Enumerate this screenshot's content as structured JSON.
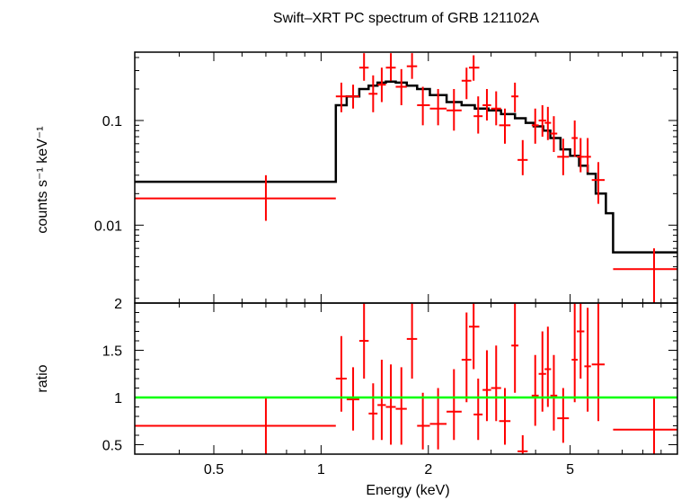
{
  "chart_data": {
    "title": "Swift–XRT PC spectrum of GRB 121102A",
    "xlabel": "Energy (keV)",
    "x_scale": "log",
    "xlim": [
      0.3,
      10
    ],
    "x_ticks": [
      {
        "value": 0.5,
        "label": "0.5"
      },
      {
        "value": 1,
        "label": "1"
      },
      {
        "value": 2,
        "label": "2"
      },
      {
        "value": 5,
        "label": "5"
      }
    ],
    "colors": {
      "data": "#ff0000",
      "model": "#000000",
      "ratio_line": "#00ff00",
      "axes": "#000000"
    },
    "panels": [
      {
        "type": "scatter",
        "ylabel": "counts s⁻¹ keV⁻¹",
        "y_scale": "log",
        "ylim": [
          0.0018,
          0.45
        ],
        "y_ticks": [
          {
            "value": 0.1,
            "label": "0.1"
          },
          {
            "value": 0.01,
            "label": "0.01"
          }
        ],
        "model_steps": [
          {
            "x0": 0.3,
            "x1": 1.1,
            "y": 0.026
          },
          {
            "x0": 1.1,
            "x1": 1.18,
            "y": 0.14
          },
          {
            "x0": 1.18,
            "x1": 1.28,
            "y": 0.17
          },
          {
            "x0": 1.28,
            "x1": 1.36,
            "y": 0.2
          },
          {
            "x0": 1.36,
            "x1": 1.44,
            "y": 0.215
          },
          {
            "x0": 1.44,
            "x1": 1.52,
            "y": 0.23
          },
          {
            "x0": 1.52,
            "x1": 1.62,
            "y": 0.235
          },
          {
            "x0": 1.62,
            "x1": 1.74,
            "y": 0.23
          },
          {
            "x0": 1.74,
            "x1": 1.86,
            "y": 0.215
          },
          {
            "x0": 1.86,
            "x1": 2.02,
            "y": 0.2
          },
          {
            "x0": 2.02,
            "x1": 2.25,
            "y": 0.175
          },
          {
            "x0": 2.25,
            "x1": 2.48,
            "y": 0.15
          },
          {
            "x0": 2.48,
            "x1": 2.7,
            "y": 0.14
          },
          {
            "x0": 2.7,
            "x1": 2.95,
            "y": 0.13
          },
          {
            "x0": 2.95,
            "x1": 3.2,
            "y": 0.125
          },
          {
            "x0": 3.2,
            "x1": 3.5,
            "y": 0.115
          },
          {
            "x0": 3.5,
            "x1": 3.75,
            "y": 0.105
          },
          {
            "x0": 3.75,
            "x1": 3.95,
            "y": 0.095
          },
          {
            "x0": 3.95,
            "x1": 4.2,
            "y": 0.088
          },
          {
            "x0": 4.2,
            "x1": 4.4,
            "y": 0.08
          },
          {
            "x0": 4.4,
            "x1": 4.7,
            "y": 0.068
          },
          {
            "x0": 4.7,
            "x1": 5.0,
            "y": 0.053
          },
          {
            "x0": 5.0,
            "x1": 5.3,
            "y": 0.046
          },
          {
            "x0": 5.3,
            "x1": 5.6,
            "y": 0.037
          },
          {
            "x0": 5.6,
            "x1": 5.9,
            "y": 0.031
          },
          {
            "x0": 5.9,
            "x1": 6.3,
            "y": 0.02
          },
          {
            "x0": 6.3,
            "x1": 6.6,
            "y": 0.013
          },
          {
            "x0": 6.6,
            "x1": 10,
            "y": 0.0055
          }
        ],
        "points": [
          {
            "x": 0.7,
            "xlo": 0.3,
            "xhi": 1.1,
            "y": 0.018,
            "ylo": 0.011,
            "yhi": 0.03
          },
          {
            "x": 1.14,
            "xlo": 1.1,
            "xhi": 1.18,
            "y": 0.17,
            "ylo": 0.12,
            "yhi": 0.23
          },
          {
            "x": 1.23,
            "xlo": 1.18,
            "xhi": 1.28,
            "y": 0.17,
            "ylo": 0.13,
            "yhi": 0.22
          },
          {
            "x": 1.32,
            "xlo": 1.28,
            "xhi": 1.36,
            "y": 0.32,
            "ylo": 0.24,
            "yhi": 0.44
          },
          {
            "x": 1.4,
            "xlo": 1.36,
            "xhi": 1.44,
            "y": 0.18,
            "ylo": 0.12,
            "yhi": 0.27
          },
          {
            "x": 1.48,
            "xlo": 1.44,
            "xhi": 1.52,
            "y": 0.22,
            "ylo": 0.15,
            "yhi": 0.32
          },
          {
            "x": 1.57,
            "xlo": 1.52,
            "xhi": 1.62,
            "y": 0.32,
            "ylo": 0.24,
            "yhi": 0.44
          },
          {
            "x": 1.68,
            "xlo": 1.62,
            "xhi": 1.74,
            "y": 0.21,
            "ylo": 0.14,
            "yhi": 0.31
          },
          {
            "x": 1.8,
            "xlo": 1.74,
            "xhi": 1.86,
            "y": 0.33,
            "ylo": 0.25,
            "yhi": 0.44
          },
          {
            "x": 1.93,
            "xlo": 1.86,
            "xhi": 2.02,
            "y": 0.14,
            "ylo": 0.09,
            "yhi": 0.21
          },
          {
            "x": 2.13,
            "xlo": 2.02,
            "xhi": 2.25,
            "y": 0.13,
            "ylo": 0.09,
            "yhi": 0.2
          },
          {
            "x": 2.36,
            "xlo": 2.25,
            "xhi": 2.48,
            "y": 0.125,
            "ylo": 0.08,
            "yhi": 0.2
          },
          {
            "x": 2.56,
            "xlo": 2.48,
            "xhi": 2.64,
            "y": 0.24,
            "ylo": 0.16,
            "yhi": 0.32
          },
          {
            "x": 2.68,
            "xlo": 2.6,
            "xhi": 2.78,
            "y": 0.32,
            "ylo": 0.24,
            "yhi": 0.42
          },
          {
            "x": 2.76,
            "xlo": 2.68,
            "xhi": 2.84,
            "y": 0.11,
            "ylo": 0.075,
            "yhi": 0.17
          },
          {
            "x": 2.92,
            "xlo": 2.84,
            "xhi": 3.0,
            "y": 0.14,
            "ylo": 0.1,
            "yhi": 0.2
          },
          {
            "x": 3.1,
            "xlo": 3.0,
            "xhi": 3.2,
            "y": 0.13,
            "ylo": 0.09,
            "yhi": 0.19
          },
          {
            "x": 3.28,
            "xlo": 3.16,
            "xhi": 3.4,
            "y": 0.09,
            "ylo": 0.06,
            "yhi": 0.13
          },
          {
            "x": 3.5,
            "xlo": 3.42,
            "xhi": 3.58,
            "y": 0.17,
            "ylo": 0.12,
            "yhi": 0.23
          },
          {
            "x": 3.68,
            "xlo": 3.56,
            "xhi": 3.8,
            "y": 0.042,
            "ylo": 0.03,
            "yhi": 0.065
          },
          {
            "x": 3.99,
            "xlo": 3.9,
            "xhi": 4.08,
            "y": 0.09,
            "ylo": 0.06,
            "yhi": 0.13
          },
          {
            "x": 4.18,
            "xlo": 4.08,
            "xhi": 4.28,
            "y": 0.1,
            "ylo": 0.07,
            "yhi": 0.14
          },
          {
            "x": 4.33,
            "xlo": 4.24,
            "xhi": 4.42,
            "y": 0.095,
            "ylo": 0.065,
            "yhi": 0.135
          },
          {
            "x": 4.5,
            "xlo": 4.4,
            "xhi": 4.6,
            "y": 0.075,
            "ylo": 0.05,
            "yhi": 0.11
          },
          {
            "x": 4.78,
            "xlo": 4.6,
            "xhi": 4.96,
            "y": 0.045,
            "ylo": 0.03,
            "yhi": 0.067
          },
          {
            "x": 5.15,
            "xlo": 5.05,
            "xhi": 5.25,
            "y": 0.068,
            "ylo": 0.045,
            "yhi": 0.1
          },
          {
            "x": 5.35,
            "xlo": 5.22,
            "xhi": 5.48,
            "y": 0.045,
            "ylo": 0.032,
            "yhi": 0.068
          },
          {
            "x": 5.6,
            "xlo": 5.48,
            "xhi": 5.72,
            "y": 0.045,
            "ylo": 0.032,
            "yhi": 0.068
          },
          {
            "x": 6.0,
            "xlo": 5.75,
            "xhi": 6.25,
            "y": 0.027,
            "ylo": 0.016,
            "yhi": 0.04
          },
          {
            "x": 8.6,
            "xlo": 6.6,
            "xhi": 10,
            "y": 0.0038,
            "ylo": 0.0018,
            "yhi": 0.006
          }
        ]
      },
      {
        "type": "scatter",
        "ylabel": "ratio",
        "y_scale": "linear",
        "ylim": [
          0.4,
          2.0
        ],
        "y_ticks": [
          {
            "value": 0.5,
            "label": "0.5"
          },
          {
            "value": 1,
            "label": "1"
          },
          {
            "value": 1.5,
            "label": "1.5"
          },
          {
            "value": 2,
            "label": "2"
          }
        ],
        "reference_line": 1.0,
        "points": [
          {
            "x": 0.7,
            "xlo": 0.3,
            "xhi": 1.1,
            "y": 0.7,
            "ylo": 0.4,
            "yhi": 1.0
          },
          {
            "x": 1.14,
            "xlo": 1.1,
            "xhi": 1.18,
            "y": 1.2,
            "ylo": 0.85,
            "yhi": 1.65
          },
          {
            "x": 1.23,
            "xlo": 1.18,
            "xhi": 1.28,
            "y": 0.98,
            "ylo": 0.65,
            "yhi": 1.32
          },
          {
            "x": 1.32,
            "xlo": 1.28,
            "xhi": 1.36,
            "y": 1.6,
            "ylo": 1.2,
            "yhi": 2.0
          },
          {
            "x": 1.4,
            "xlo": 1.36,
            "xhi": 1.44,
            "y": 0.83,
            "ylo": 0.55,
            "yhi": 1.15
          },
          {
            "x": 1.48,
            "xlo": 1.44,
            "xhi": 1.52,
            "y": 0.92,
            "ylo": 0.55,
            "yhi": 1.4
          },
          {
            "x": 1.57,
            "xlo": 1.52,
            "xhi": 1.62,
            "y": 0.9,
            "ylo": 0.5,
            "yhi": 1.35
          },
          {
            "x": 1.68,
            "xlo": 1.62,
            "xhi": 1.74,
            "y": 0.88,
            "ylo": 0.5,
            "yhi": 1.32
          },
          {
            "x": 1.8,
            "xlo": 1.74,
            "xhi": 1.86,
            "y": 1.62,
            "ylo": 1.2,
            "yhi": 2.0
          },
          {
            "x": 1.93,
            "xlo": 1.86,
            "xhi": 2.02,
            "y": 0.7,
            "ylo": 0.45,
            "yhi": 1.05
          },
          {
            "x": 2.13,
            "xlo": 2.02,
            "xhi": 2.25,
            "y": 0.72,
            "ylo": 0.45,
            "yhi": 1.1
          },
          {
            "x": 2.36,
            "xlo": 2.25,
            "xhi": 2.48,
            "y": 0.85,
            "ylo": 0.55,
            "yhi": 1.3
          },
          {
            "x": 2.56,
            "xlo": 2.48,
            "xhi": 2.64,
            "y": 1.4,
            "ylo": 0.95,
            "yhi": 1.9
          },
          {
            "x": 2.68,
            "xlo": 2.6,
            "xhi": 2.78,
            "y": 1.75,
            "ylo": 1.3,
            "yhi": 2.0
          },
          {
            "x": 2.76,
            "xlo": 2.68,
            "xhi": 2.84,
            "y": 0.82,
            "ylo": 0.55,
            "yhi": 1.2
          },
          {
            "x": 2.92,
            "xlo": 2.84,
            "xhi": 3.0,
            "y": 1.08,
            "ylo": 0.75,
            "yhi": 1.5
          },
          {
            "x": 3.1,
            "xlo": 3.0,
            "xhi": 3.2,
            "y": 1.1,
            "ylo": 0.75,
            "yhi": 1.55
          },
          {
            "x": 3.28,
            "xlo": 3.16,
            "xhi": 3.4,
            "y": 0.75,
            "ylo": 0.5,
            "yhi": 1.1
          },
          {
            "x": 3.5,
            "xlo": 3.42,
            "xhi": 3.58,
            "y": 1.55,
            "ylo": 1.05,
            "yhi": 2.0
          },
          {
            "x": 3.68,
            "xlo": 3.56,
            "xhi": 3.8,
            "y": 0.43,
            "ylo": 0.4,
            "yhi": 0.6
          },
          {
            "x": 3.99,
            "xlo": 3.9,
            "xhi": 4.08,
            "y": 1.02,
            "ylo": 0.7,
            "yhi": 1.45
          },
          {
            "x": 4.18,
            "xlo": 4.08,
            "xhi": 4.28,
            "y": 1.25,
            "ylo": 0.85,
            "yhi": 1.7
          },
          {
            "x": 4.33,
            "xlo": 4.24,
            "xhi": 4.42,
            "y": 1.3,
            "ylo": 0.9,
            "yhi": 1.75
          },
          {
            "x": 4.5,
            "xlo": 4.4,
            "xhi": 4.6,
            "y": 1.02,
            "ylo": 0.65,
            "yhi": 1.45
          },
          {
            "x": 4.78,
            "xlo": 4.6,
            "xhi": 4.96,
            "y": 0.78,
            "ylo": 0.52,
            "yhi": 1.1
          },
          {
            "x": 5.15,
            "xlo": 5.05,
            "xhi": 5.25,
            "y": 1.4,
            "ylo": 0.95,
            "yhi": 2.0
          },
          {
            "x": 5.35,
            "xlo": 5.22,
            "xhi": 5.48,
            "y": 1.7,
            "ylo": 1.2,
            "yhi": 2.0
          },
          {
            "x": 5.6,
            "xlo": 5.48,
            "xhi": 5.72,
            "y": 1.33,
            "ylo": 0.85,
            "yhi": 1.95
          },
          {
            "x": 6.0,
            "xlo": 5.75,
            "xhi": 6.25,
            "y": 1.35,
            "ylo": 0.75,
            "yhi": 2.0
          },
          {
            "x": 8.6,
            "xlo": 6.6,
            "xhi": 10,
            "y": 0.66,
            "ylo": 0.4,
            "yhi": 1.0
          }
        ]
      }
    ]
  }
}
